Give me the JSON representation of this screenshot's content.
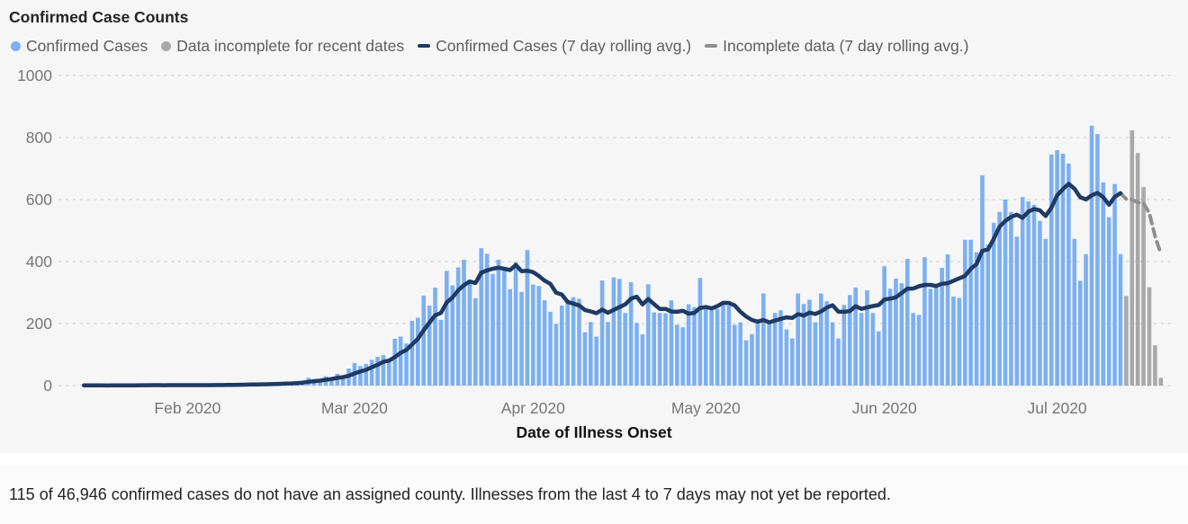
{
  "title": "Confirmed Case Counts",
  "legend": [
    {
      "label": "Confirmed Cases",
      "glyph": "dot",
      "color": "#7cb0f0"
    },
    {
      "label": "Data incomplete for recent dates",
      "glyph": "dot",
      "color": "#a9a9a9"
    },
    {
      "label": "Confirmed Cases (7 day rolling avg.)",
      "glyph": "line",
      "color": "#1f3a63"
    },
    {
      "label": "Incomplete data (7 day rolling avg.)",
      "glyph": "line",
      "color": "#8f8f8f"
    }
  ],
  "x_axis": {
    "label": "Date of Illness Onset"
  },
  "footnote": "115 of 46,946 confirmed cases do not have an assigned county. Illnesses from the last 4 to 7 days may not yet be reported.",
  "colors": {
    "bar_confirmed": "#7cb0f0",
    "bar_incomplete": "#a9a9a9",
    "avg_line": "#1f3a63",
    "avg_line_incomplete": "#8f8f8f",
    "grid": "#d9d9d9"
  },
  "chart_data": {
    "type": "bar",
    "title": "Confirmed Case Counts",
    "xlabel": "Date of Illness Onset",
    "ylabel": "",
    "ylim": [
      0,
      1000
    ],
    "y_ticks": [
      0,
      200,
      400,
      600,
      800,
      1000
    ],
    "grid": "dotted-horizontal",
    "legend_position": "top",
    "x_start_date": "2020-01-14",
    "x_ticks": [
      {
        "label": "Feb 2020",
        "day_index": 18
      },
      {
        "label": "Mar 2020",
        "day_index": 47
      },
      {
        "label": "Apr 2020",
        "day_index": 78
      },
      {
        "label": "May 2020",
        "day_index": 108
      },
      {
        "label": "Jun 2020",
        "day_index": 139
      },
      {
        "label": "Jul 2020",
        "day_index": 169
      }
    ],
    "daily_values": [
      1,
      0,
      1,
      0,
      0,
      1,
      1,
      2,
      1,
      1,
      2,
      1,
      2,
      1,
      1,
      2,
      2,
      1,
      1,
      2,
      1,
      2,
      2,
      3,
      2,
      3,
      4,
      3,
      4,
      5,
      4,
      6,
      5,
      7,
      8,
      10,
      9,
      12,
      15,
      25,
      21,
      20,
      30,
      26,
      38,
      31,
      55,
      73,
      63,
      70,
      83,
      93,
      98,
      85,
      151,
      158,
      136,
      209,
      219,
      290,
      258,
      316,
      212,
      370,
      323,
      381,
      406,
      341,
      282,
      443,
      425,
      360,
      406,
      380,
      311,
      398,
      302,
      437,
      326,
      321,
      275,
      238,
      199,
      258,
      275,
      285,
      280,
      172,
      205,
      158,
      339,
      205,
      349,
      344,
      234,
      333,
      202,
      165,
      327,
      236,
      234,
      233,
      275,
      196,
      188,
      262,
      253,
      347,
      253,
      243,
      247,
      263,
      260,
      196,
      204,
      146,
      166,
      210,
      297,
      210,
      234,
      243,
      181,
      152,
      297,
      263,
      277,
      204,
      297,
      272,
      204,
      152,
      260,
      292,
      316,
      234,
      307,
      234,
      175,
      385,
      312,
      345,
      330,
      409,
      234,
      228,
      414,
      312,
      321,
      380,
      423,
      287,
      283,
      470,
      470,
      430,
      678,
      455,
      525,
      560,
      600,
      560,
      480,
      608,
      594,
      583,
      531,
      473,
      745,
      759,
      748,
      716,
      473,
      338,
      424,
      838,
      811,
      655,
      543,
      650,
      424,
      289,
      823,
      750,
      640,
      317,
      130,
      25
    ],
    "incomplete_tail_count": 7,
    "series_notes": [
      {
        "name": "Confirmed Cases",
        "type": "bar",
        "color": "#7cb0f0"
      },
      {
        "name": "Data incomplete for recent dates",
        "type": "bar",
        "color": "#a9a9a9"
      },
      {
        "name": "Confirmed Cases (7 day rolling avg.)",
        "type": "line",
        "style": "solid",
        "color": "#1f3a63",
        "derivation": "trailing 7-day mean of daily_values"
      },
      {
        "name": "Incomplete data (7 day rolling avg.)",
        "type": "line",
        "style": "dashed",
        "color": "#8f8f8f",
        "derivation": "trailing 7-day mean over incomplete tail"
      }
    ]
  }
}
